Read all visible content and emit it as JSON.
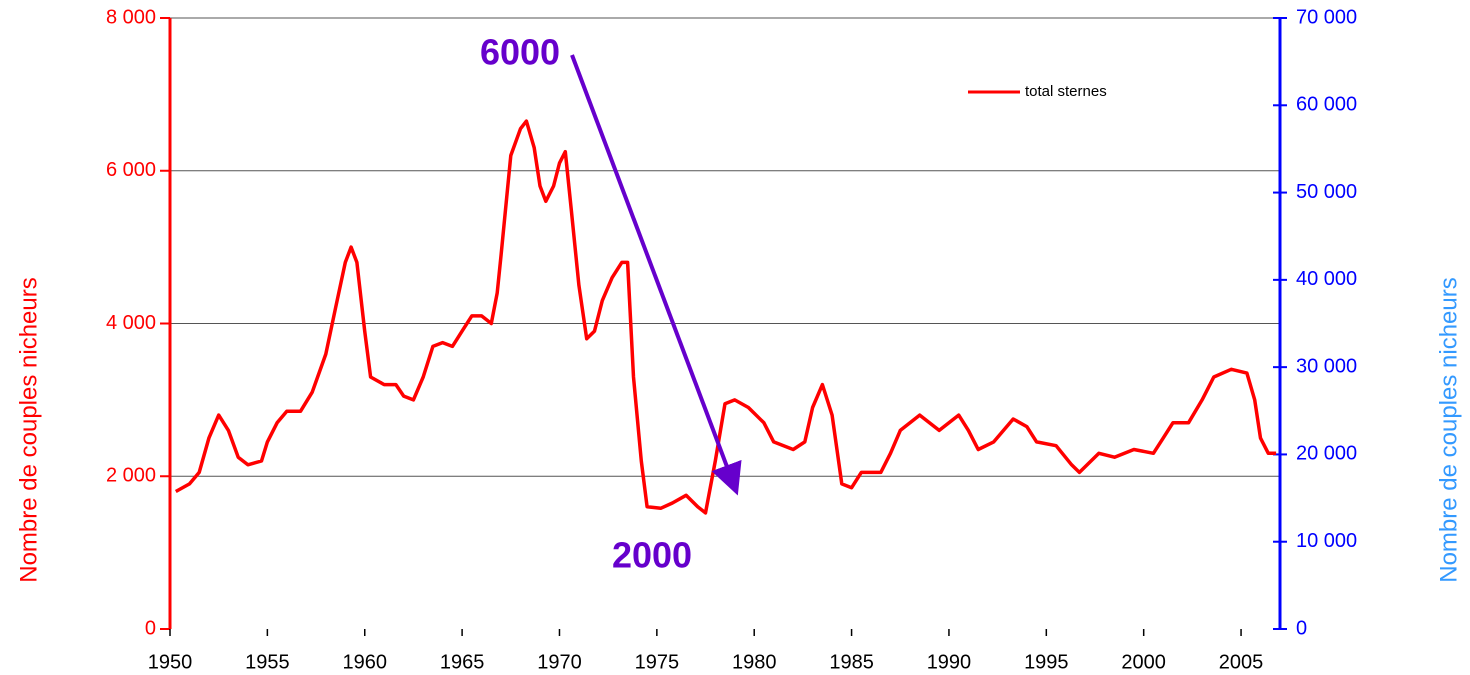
{
  "chart_data": {
    "type": "line",
    "y_label": "Nombre de couples nicheurs",
    "y2_label": "Nombre de couples nicheurs",
    "annotations": [
      "6000",
      "2000"
    ],
    "legend": "upper right",
    "grid": true,
    "xlim": [
      1950,
      2007
    ],
    "xticks": [
      1950,
      1955,
      1960,
      1965,
      1970,
      1975,
      1980,
      1985,
      1990,
      1995,
      2000,
      2005
    ],
    "ylim": [
      0,
      8000
    ],
    "yticks": [
      0,
      {
        "value": 2000,
        "label": "2 000"
      },
      {
        "value": 4000,
        "label": "4 000"
      },
      {
        "value": 6000,
        "label": "6 000"
      },
      {
        "value": 8000,
        "label": "8 000"
      }
    ],
    "y2lim": [
      0,
      70000
    ],
    "y2ticks": [
      0,
      {
        "value": 10000,
        "label": "10 000"
      },
      {
        "value": 20000,
        "label": "20 000"
      },
      {
        "value": 30000,
        "label": "30 000"
      },
      {
        "value": 40000,
        "label": "40 000"
      },
      {
        "value": 50000,
        "label": "50 000"
      },
      {
        "value": 60000,
        "label": "60 000"
      },
      {
        "value": 70000,
        "label": "70 000"
      }
    ],
    "x": [
      1950.3,
      1951,
      1951.5,
      1952,
      1952.5,
      1953,
      1953.5,
      1954,
      1954.7,
      1955,
      1955.5,
      1956,
      1956.7,
      1957.3,
      1958,
      1958.5,
      1959,
      1959.3,
      1959.6,
      1960,
      1960.3,
      1961,
      1961.6,
      1962,
      1962.5,
      1963,
      1963.5,
      1964,
      1964.5,
      1965,
      1965.5,
      1966,
      1966.5,
      1966.8,
      1967,
      1967.5,
      1968,
      1968.3,
      1968.7,
      1969,
      1969.3,
      1969.7,
      1970,
      1970.3,
      1970.6,
      1971,
      1971.4,
      1971.8,
      1972.2,
      1972.7,
      1973.2,
      1973.5,
      1973.8,
      1974.2,
      1974.5,
      1975.2,
      1975.8,
      1976.5,
      1977.1,
      1977.5,
      1978,
      1978.5,
      1979,
      1979.7,
      1980.5,
      1981,
      1982,
      1982.6,
      1983,
      1983.5,
      1984,
      1984.5,
      1985,
      1985.5,
      1986.5,
      1987,
      1987.5,
      1988.5,
      1989.5,
      1990.5,
      1991,
      1991.5,
      1992.3,
      1993.3,
      1994,
      1994.5,
      1995.5,
      1996.3,
      1996.7,
      1997.7,
      1998.5,
      1999.5,
      2000.5,
      2001,
      2001.5,
      2002.3,
      2003,
      2003.6,
      2004.5,
      2005.3,
      2005.7,
      2006,
      2006.4,
      2006.8
    ],
    "series": [
      {
        "name": "total sternes",
        "color": "#ff0000",
        "values": [
          1800,
          1900,
          2050,
          2500,
          2800,
          2600,
          2250,
          2150,
          2200,
          2450,
          2700,
          2850,
          2850,
          3100,
          3600,
          4200,
          4800,
          5000,
          4800,
          3900,
          3300,
          3200,
          3200,
          3050,
          3000,
          3300,
          3700,
          3750,
          3700,
          3900,
          4100,
          4100,
          4000,
          4400,
          4900,
          6200,
          6550,
          6650,
          6300,
          5800,
          5600,
          5800,
          6100,
          6250,
          5500,
          4500,
          3800,
          3900,
          4300,
          4600,
          4800,
          4800,
          3300,
          2200,
          1600,
          1580,
          1650,
          1750,
          1600,
          1520,
          2200,
          2950,
          3000,
          2900,
          2700,
          2450,
          2350,
          2450,
          2900,
          3200,
          2800,
          1900,
          1850,
          2050,
          2050,
          2300,
          2600,
          2800,
          2600,
          2800,
          2600,
          2350,
          2450,
          2750,
          2650,
          2450,
          2400,
          2150,
          2050,
          2300,
          2250,
          2350,
          2300,
          2500,
          2700,
          2700,
          3000,
          3300,
          3400,
          3350,
          3000,
          2500,
          2300,
          2300
        ]
      }
    ]
  }
}
